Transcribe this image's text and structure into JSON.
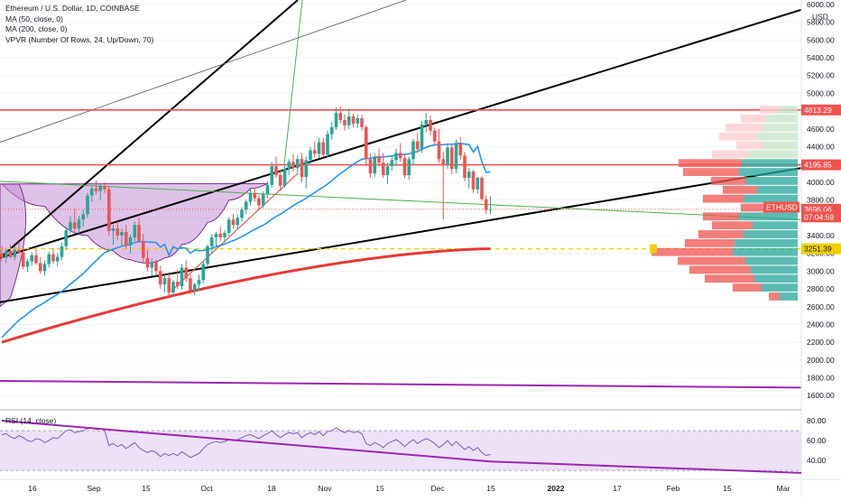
{
  "legend": {
    "title": "Ethereum / U.S. Dollar, 1D, COINBASE",
    "ma50": "MA (50, close, 0)",
    "ma200": "MA (200, close, 0)",
    "vpvr": "VPVR (Number Of Rows, 24, Up/Down, 70)"
  },
  "rsi_legend": "RSI (14, close)",
  "currency": "USD",
  "colors": {
    "up": "#26a69a",
    "down": "#ef5350",
    "ma50": "#2196f3",
    "ma200": "#e53935",
    "trend": "#000000",
    "purple": "#9c27b0",
    "green_line": "#4caf50",
    "yellow": "#f0d000",
    "cup_fill": "#c58fd6",
    "rsi_band": "#ede0f7",
    "rsi_line": "#7e57c2"
  },
  "chart_data": [
    {
      "type": "candlestick",
      "title": "Ethereum / U.S. Dollar, 1D, COINBASE",
      "ylabel": "USD",
      "y_range": [
        1450,
        6050
      ],
      "y_ticks": [
        "6000.00",
        "5800.00",
        "5600.00",
        "5400.00",
        "5200.00",
        "5000.00",
        "4800.00",
        "4600.00",
        "4400.00",
        "4200.00",
        "4000.00",
        "3800.00",
        "3600.00",
        "3400.00",
        "3200.00",
        "3000.00",
        "2800.00",
        "2600.00",
        "2400.00",
        "2200.00",
        "2000.00",
        "1800.00",
        "1600.00"
      ],
      "x_ticks": [
        "16",
        "Sep",
        "15",
        "Oct",
        "18",
        "Nov",
        "15",
        "Dec",
        "15",
        "2022",
        "17",
        "Feb",
        "15",
        "Mar"
      ],
      "price_labels": [
        {
          "text": "4813.29",
          "value": 4813.29,
          "color": "#ef5350"
        },
        {
          "text": "4195.85",
          "value": 4195.85,
          "color": "#ef5350"
        },
        {
          "text": "ETHUSD",
          "value": 3720,
          "color": "#ef5350"
        },
        {
          "text": "3696.06",
          "value": 3696.06,
          "color": "#ef5350"
        },
        {
          "text": "07:04:59",
          "value": 3610,
          "color": "#ef5350"
        },
        {
          "text": "3251.39",
          "value": 3251.39,
          "color": "#f0d000"
        }
      ],
      "horizontal_levels": [
        4813.29,
        4195.85,
        3251.39
      ],
      "ma200_end": 3251.39,
      "last_close": 3696.06,
      "candles_ohlc": [
        [
          3200,
          3280,
          3110,
          3150
        ],
        [
          3150,
          3260,
          3090,
          3230
        ],
        [
          3230,
          3300,
          3140,
          3160
        ],
        [
          3160,
          3280,
          3120,
          3240
        ],
        [
          3240,
          3330,
          3190,
          3210
        ],
        [
          3210,
          3260,
          3020,
          3050
        ],
        [
          3050,
          3140,
          2990,
          3110
        ],
        [
          3110,
          3210,
          3060,
          3180
        ],
        [
          3180,
          3250,
          3070,
          3090
        ],
        [
          3090,
          3160,
          2970,
          3000
        ],
        [
          3000,
          3120,
          2950,
          3080
        ],
        [
          3080,
          3220,
          3040,
          3190
        ],
        [
          3190,
          3260,
          3080,
          3110
        ],
        [
          3110,
          3200,
          3050,
          3160
        ],
        [
          3160,
          3320,
          3120,
          3280
        ],
        [
          3280,
          3500,
          3240,
          3460
        ],
        [
          3460,
          3620,
          3420,
          3550
        ],
        [
          3550,
          3700,
          3430,
          3480
        ],
        [
          3480,
          3620,
          3420,
          3580
        ],
        [
          3580,
          3690,
          3500,
          3640
        ],
        [
          3640,
          3880,
          3600,
          3850
        ],
        [
          3850,
          3960,
          3780,
          3930
        ],
        [
          3930,
          4020,
          3860,
          3900
        ],
        [
          3900,
          3990,
          3800,
          3960
        ],
        [
          3960,
          4000,
          3880,
          3920
        ],
        [
          3920,
          3960,
          3400,
          3450
        ],
        [
          3450,
          3520,
          3300,
          3480
        ],
        [
          3480,
          3560,
          3350,
          3400
        ],
        [
          3400,
          3480,
          3280,
          3440
        ],
        [
          3440,
          3520,
          3250,
          3290
        ],
        [
          3290,
          3410,
          3200,
          3380
        ],
        [
          3380,
          3560,
          3340,
          3520
        ],
        [
          3520,
          3600,
          3320,
          3340
        ],
        [
          3340,
          3420,
          3100,
          3150
        ],
        [
          3150,
          3240,
          3000,
          3040
        ],
        [
          3040,
          3140,
          2950,
          3100
        ],
        [
          3100,
          3120,
          2950,
          3000
        ],
        [
          3000,
          3060,
          2800,
          2850
        ],
        [
          2850,
          2960,
          2760,
          2920
        ],
        [
          2920,
          2990,
          2720,
          2760
        ],
        [
          2760,
          2900,
          2730,
          2880
        ],
        [
          2880,
          3020,
          2800,
          2830
        ],
        [
          2830,
          3080,
          2790,
          3040
        ],
        [
          3040,
          3120,
          2880,
          2920
        ],
        [
          2920,
          2960,
          2740,
          2780
        ],
        [
          2780,
          2870,
          2730,
          2850
        ],
        [
          2850,
          2960,
          2780,
          2900
        ],
        [
          2900,
          3120,
          2860,
          3080
        ],
        [
          3080,
          3300,
          3040,
          3280
        ],
        [
          3280,
          3420,
          3200,
          3380
        ],
        [
          3380,
          3440,
          3280,
          3420
        ],
        [
          3420,
          3500,
          3340,
          3380
        ],
        [
          3380,
          3460,
          3320,
          3430
        ],
        [
          3430,
          3610,
          3400,
          3580
        ],
        [
          3580,
          3640,
          3480,
          3520
        ],
        [
          3520,
          3640,
          3470,
          3600
        ],
        [
          3600,
          3720,
          3560,
          3690
        ],
        [
          3690,
          3810,
          3640,
          3780
        ],
        [
          3780,
          3930,
          3740,
          3880
        ],
        [
          3880,
          3940,
          3780,
          3820
        ],
        [
          3820,
          3860,
          3700,
          3740
        ],
        [
          3740,
          3900,
          3710,
          3870
        ],
        [
          3870,
          4010,
          3820,
          3970
        ],
        [
          3970,
          4230,
          3940,
          4180
        ],
        [
          4180,
          4290,
          4050,
          4080
        ],
        [
          4080,
          4140,
          3900,
          3960
        ],
        [
          3960,
          4200,
          3940,
          4150
        ],
        [
          4150,
          4260,
          4080,
          4230
        ],
        [
          4230,
          4320,
          4120,
          4160
        ],
        [
          4160,
          4300,
          4090,
          4260
        ],
        [
          4260,
          4330,
          4000,
          4060
        ],
        [
          4060,
          4290,
          3930,
          4250
        ],
        [
          4250,
          4400,
          4200,
          4360
        ],
        [
          4360,
          4460,
          4280,
          4320
        ],
        [
          4320,
          4500,
          4270,
          4450
        ],
        [
          4450,
          4500,
          4280,
          4310
        ],
        [
          4310,
          4580,
          4280,
          4540
        ],
        [
          4540,
          4680,
          4480,
          4620
        ],
        [
          4620,
          4840,
          4590,
          4780
        ],
        [
          4780,
          4860,
          4660,
          4700
        ],
        [
          4700,
          4760,
          4580,
          4640
        ],
        [
          4640,
          4830,
          4600,
          4740
        ],
        [
          4740,
          4770,
          4620,
          4660
        ],
        [
          4660,
          4760,
          4610,
          4720
        ],
        [
          4720,
          4760,
          4580,
          4620
        ],
        [
          4620,
          4640,
          4180,
          4260
        ],
        [
          4260,
          4320,
          4050,
          4100
        ],
        [
          4100,
          4330,
          4060,
          4290
        ],
        [
          4290,
          4380,
          4180,
          4220
        ],
        [
          4220,
          4330,
          4050,
          4080
        ],
        [
          4080,
          4220,
          3980,
          4180
        ],
        [
          4180,
          4300,
          4130,
          4250
        ],
        [
          4250,
          4380,
          4180,
          4330
        ],
        [
          4330,
          4440,
          4230,
          4270
        ],
        [
          4270,
          4320,
          4050,
          4080
        ],
        [
          4080,
          4290,
          4030,
          4260
        ],
        [
          4260,
          4490,
          4200,
          4460
        ],
        [
          4460,
          4550,
          4330,
          4370
        ],
        [
          4370,
          4690,
          4330,
          4650
        ],
        [
          4650,
          4780,
          4560,
          4700
        ],
        [
          4700,
          4750,
          4530,
          4580
        ],
        [
          4580,
          4620,
          4420,
          4460
        ],
        [
          4460,
          4600,
          4220,
          4260
        ],
        [
          4260,
          4340,
          3580,
          4200
        ],
        [
          4200,
          4420,
          4150,
          4390
        ],
        [
          4390,
          4420,
          4090,
          4150
        ],
        [
          4150,
          4480,
          4100,
          4440
        ],
        [
          4440,
          4510,
          4250,
          4300
        ],
        [
          4300,
          4340,
          4010,
          4050
        ],
        [
          4050,
          4160,
          3930,
          4120
        ],
        [
          4120,
          4140,
          3880,
          3920
        ],
        [
          3920,
          4060,
          3870,
          4050
        ],
        [
          4050,
          4070,
          3790,
          3810
        ],
        [
          3810,
          3850,
          3640,
          3690
        ],
        [
          3690,
          3840,
          3640,
          3696.06
        ]
      ],
      "cup_path_prices": [
        [
          0,
          3980
        ],
        [
          10,
          3730
        ],
        [
          20,
          3400
        ],
        [
          26,
          3230
        ],
        [
          30,
          3130
        ],
        [
          34,
          3090
        ],
        [
          38,
          3150
        ],
        [
          42,
          3300
        ],
        [
          48,
          3550
        ],
        [
          53,
          3800
        ],
        [
          58,
          3930
        ],
        [
          62,
          3985
        ]
      ],
      "rsi": {
        "title": "RSI (14, close)",
        "y_range": [
          22,
          90
        ],
        "y_ticks": [
          "80.00",
          "60.00",
          "40.00"
        ],
        "band": [
          30,
          70
        ],
        "values": [
          66,
          67,
          64,
          62,
          65,
          63,
          60,
          59,
          62,
          61,
          58,
          60,
          63,
          62,
          66,
          70,
          71,
          68,
          69,
          70,
          72,
          73,
          71,
          72,
          70,
          55,
          57,
          54,
          56,
          52,
          55,
          58,
          53,
          50,
          48,
          50,
          48,
          44,
          47,
          45,
          47,
          45,
          49,
          46,
          43,
          45,
          47,
          52,
          56,
          58,
          59,
          58,
          59,
          61,
          60,
          61,
          63,
          65,
          66,
          64,
          62,
          65,
          67,
          70,
          66,
          63,
          66,
          68,
          67,
          68,
          63,
          66,
          68,
          66,
          69,
          65,
          69,
          70,
          73,
          70,
          68,
          70,
          68,
          69,
          67,
          57,
          55,
          58,
          56,
          53,
          57,
          59,
          61,
          58,
          54,
          58,
          61,
          57,
          60,
          62,
          60,
          57,
          53,
          56,
          60,
          55,
          59,
          55,
          51,
          54,
          50,
          53,
          48,
          45,
          46
        ],
        "trendline": [
          [
            0,
            80
          ],
          [
            114,
            39
          ]
        ],
        "trendline_ext": [
          [
            114,
            39
          ],
          [
            430,
            30
          ]
        ]
      },
      "volume_profile_rows": [
        {
          "price": 4810,
          "up": 22,
          "down": 20
        },
        {
          "price": 4710,
          "up": 35,
          "down": 28
        },
        {
          "price": 4610,
          "up": 38,
          "down": 42
        },
        {
          "price": 4510,
          "up": 45,
          "down": 42
        },
        {
          "price": 4410,
          "up": 38,
          "down": 30
        },
        {
          "price": 4310,
          "up": 55,
          "down": 40
        },
        {
          "price": 4210,
          "up": 62,
          "down": 70
        },
        {
          "price": 4110,
          "up": 65,
          "down": 62
        },
        {
          "price": 4010,
          "up": 58,
          "down": 38
        },
        {
          "price": 3910,
          "up": 45,
          "down": 38
        },
        {
          "price": 3810,
          "up": 60,
          "down": 45
        },
        {
          "price": 3710,
          "up": 38,
          "down": 25
        },
        {
          "price": 3610,
          "up": 65,
          "down": 40
        },
        {
          "price": 3510,
          "up": 50,
          "down": 45
        },
        {
          "price": 3410,
          "up": 60,
          "down": 50
        },
        {
          "price": 3310,
          "up": 70,
          "down": 55
        },
        {
          "price": 3210,
          "up": 72,
          "down": 90
        },
        {
          "price": 3110,
          "up": 58,
          "down": 75
        },
        {
          "price": 3010,
          "up": 52,
          "down": 68
        },
        {
          "price": 2910,
          "up": 48,
          "down": 55
        },
        {
          "price": 2810,
          "up": 40,
          "down": 32
        },
        {
          "price": 2710,
          "up": 20,
          "down": 12
        }
      ]
    }
  ]
}
